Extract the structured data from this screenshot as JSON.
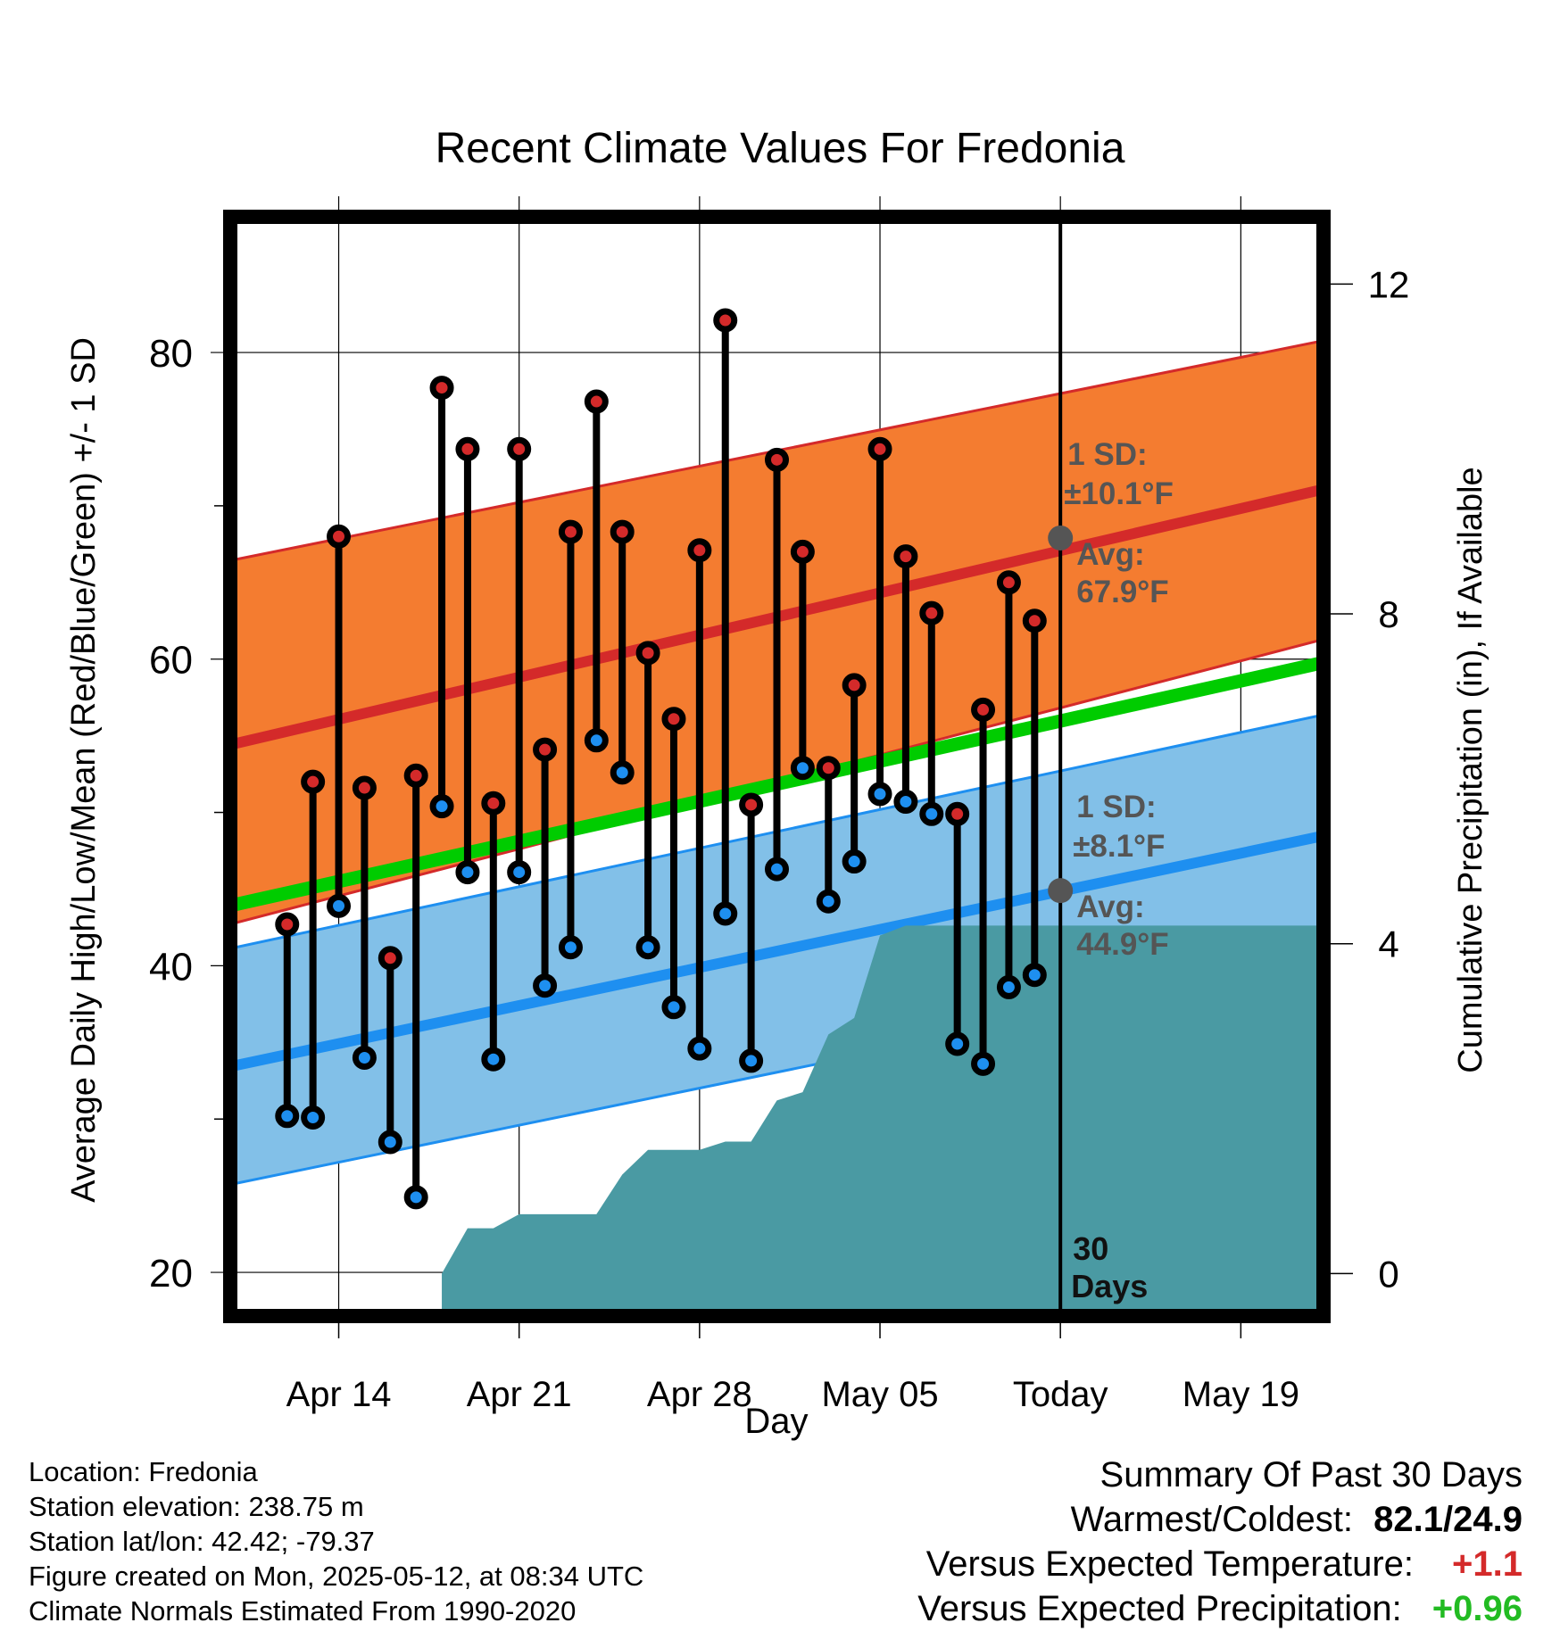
{
  "chart_data": {
    "type": "line",
    "title": "Recent Climate Values For Fredonia",
    "xlabel": "Day",
    "ylabel": "Average Daily High/Low/Mean (Red/Blue/Green) +/- 1 SD",
    "y2label": "Cumulative Precipitation (in), If Available",
    "ylim": [
      17.5,
      88.5
    ],
    "y_ticks": [
      20,
      40,
      60,
      80
    ],
    "y2lim": [
      -0.45,
      12.75
    ],
    "y2_ticks": [
      0,
      4,
      8,
      12
    ],
    "x_dates": [
      "2025-04-10",
      "2025-04-11",
      "2025-04-12",
      "2025-04-13",
      "2025-04-14",
      "2025-04-15",
      "2025-04-16",
      "2025-04-17",
      "2025-04-18",
      "2025-04-19",
      "2025-04-20",
      "2025-04-21",
      "2025-04-22",
      "2025-04-23",
      "2025-04-24",
      "2025-04-25",
      "2025-04-26",
      "2025-04-27",
      "2025-04-28",
      "2025-04-29",
      "2025-04-30",
      "2025-05-01",
      "2025-05-02",
      "2025-05-03",
      "2025-05-04",
      "2025-05-05",
      "2025-05-06",
      "2025-05-07",
      "2025-05-08",
      "2025-05-09",
      "2025-05-10",
      "2025-05-11",
      "2025-05-12",
      "2025-05-13",
      "2025-05-14",
      "2025-05-15",
      "2025-05-16",
      "2025-05-17",
      "2025-05-18",
      "2025-05-19",
      "2025-05-20",
      "2025-05-21",
      "2025-05-22"
    ],
    "x_range": [
      "2025-04-10",
      "2025-05-22"
    ],
    "x_ticks": [
      {
        "date": "2025-04-14",
        "label": "Apr 14"
      },
      {
        "date": "2025-04-21",
        "label": "Apr 21"
      },
      {
        "date": "2025-04-28",
        "label": "Apr 28"
      },
      {
        "date": "2025-05-05",
        "label": "May 05"
      },
      {
        "date": "2025-05-12",
        "label": "Today"
      },
      {
        "date": "2025-05-19",
        "label": "May 19"
      }
    ],
    "today": "2025-05-12",
    "period_label_1": "30",
    "period_label_2": "Days",
    "observed_dates": [
      "2025-04-12",
      "2025-04-13",
      "2025-04-14",
      "2025-04-15",
      "2025-04-16",
      "2025-04-17",
      "2025-04-18",
      "2025-04-19",
      "2025-04-20",
      "2025-04-21",
      "2025-04-22",
      "2025-04-23",
      "2025-04-24",
      "2025-04-25",
      "2025-04-26",
      "2025-04-27",
      "2025-04-28",
      "2025-04-29",
      "2025-04-30",
      "2025-05-01",
      "2025-05-02",
      "2025-05-03",
      "2025-05-04",
      "2025-05-05",
      "2025-05-06",
      "2025-05-07",
      "2025-05-08",
      "2025-05-09",
      "2025-05-10",
      "2025-05-11"
    ],
    "series": [
      {
        "name": "High",
        "color": "#d42a2a",
        "values": [
          42.7,
          52.0,
          68.0,
          51.6,
          40.5,
          52.4,
          77.7,
          73.7,
          50.6,
          73.7,
          54.1,
          68.3,
          76.8,
          68.3,
          60.4,
          56.1,
          67.1,
          82.1,
          50.5,
          73.0,
          67.0,
          52.9,
          58.3,
          73.7,
          66.7,
          63.0,
          49.9,
          56.7,
          65.0,
          62.5
        ]
      },
      {
        "name": "Low",
        "color": "#1e8ff0",
        "values": [
          30.2,
          30.1,
          43.9,
          34.0,
          28.5,
          24.9,
          50.4,
          46.1,
          33.9,
          46.1,
          38.7,
          41.2,
          54.7,
          52.6,
          41.2,
          37.3,
          34.6,
          43.4,
          33.8,
          46.3,
          52.9,
          44.2,
          46.8,
          51.2,
          50.7,
          49.9,
          34.9,
          33.6,
          38.6,
          39.4
        ]
      },
      {
        "name": "Cumulative Precipitation",
        "color": "#4a9aa3",
        "values": [
          0,
          0,
          0,
          0,
          0,
          0,
          0,
          0.55,
          0.55,
          0.72,
          0.72,
          0.72,
          0.72,
          1.2,
          1.5,
          1.5,
          1.5,
          1.6,
          1.6,
          2.1,
          2.2,
          2.9,
          3.1,
          4.1,
          4.22,
          4.22,
          4.22,
          4.22,
          4.22,
          4.22
        ],
        "extends_to": "2025-05-22"
      }
    ],
    "normals": {
      "high_avg_start": 54.5,
      "high_avg_end": 71.0,
      "high_sd_upper_start": 66.5,
      "high_sd_upper_end": 80.7,
      "high_sd_lower_start": 42.8,
      "high_sd_lower_end": 61.2,
      "low_avg_start": 33.5,
      "low_avg_end": 48.4,
      "low_sd_upper_start": 41.2,
      "low_sd_upper_end": 56.3,
      "low_sd_lower_start": 25.8,
      "low_sd_lower_end": 40.3,
      "mean_start": 44.0,
      "mean_end": 59.7
    },
    "colors": {
      "high_band": "#f47c30",
      "high_line": "#d42a2a",
      "low_band": "#82c0e8",
      "low_line": "#1e8ff0",
      "mean_line": "#00cc00",
      "precip": "#4a9aa3",
      "avg_marker": "#555555"
    },
    "annotations": {
      "high_sd_label": "1 SD:",
      "high_sd_value": "±10.1°F",
      "high_avg_label": "Avg:",
      "high_avg_value": "67.9°F",
      "high_avg": 67.9,
      "low_sd_label": "1 SD:",
      "low_sd_value": "±8.1°F",
      "low_avg_label": "Avg:",
      "low_avg_value": "44.9°F",
      "low_avg": 44.9
    }
  },
  "footer": {
    "location": "Location: Fredonia",
    "elevation": "Station elevation: 238.75 m",
    "latlon": "Station lat/lon: 42.42; -79.37",
    "created": "Figure created on Mon, 2025-05-12, at 08:34 UTC",
    "normals": "Climate Normals Estimated From 1990-2020"
  },
  "summary": {
    "title": "Summary Of Past 30 Days",
    "warmest_coldest_label": "Warmest/Coldest:",
    "warmest_coldest_value": "82.1/24.9",
    "temp_label": "Versus Expected Temperature:",
    "temp_value": "+1.1",
    "temp_color": "#d42a2a",
    "precip_label": "Versus Expected Precipitation:",
    "precip_value": "+0.96",
    "precip_color": "#22bb22"
  }
}
